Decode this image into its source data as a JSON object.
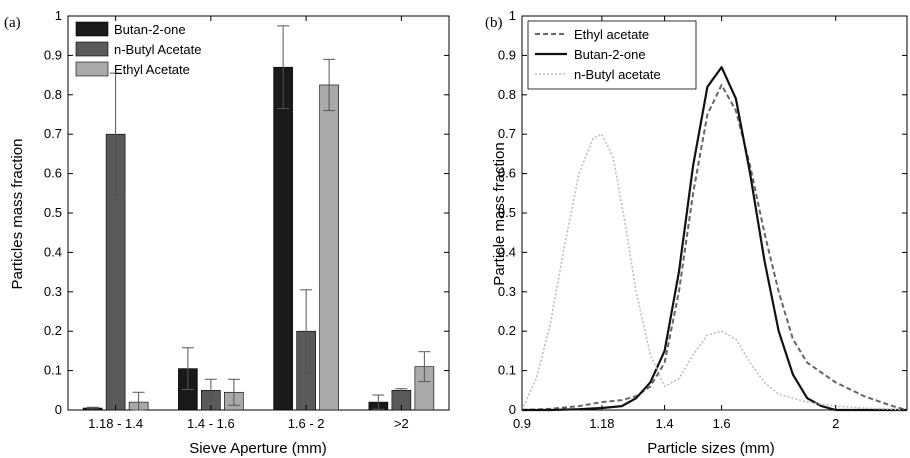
{
  "chart_data": [
    {
      "panel_label": "(a)",
      "type": "bar",
      "xlabel": "Sieve Aperture (mm)",
      "ylabel": "Particles mass fraction",
      "ylim": [
        0,
        1
      ],
      "yticks": [
        0,
        0.1,
        0.2,
        0.3,
        0.4,
        0.5,
        0.6,
        0.7,
        0.8,
        0.9,
        1
      ],
      "categories": [
        "1.18 - 1.4",
        "1.4 - 1.6",
        "1.6 - 2",
        ">2"
      ],
      "legend_position": "top-left",
      "series": [
        {
          "name": "Butan-2-one",
          "color": "#1a1a1a",
          "values": [
            0.005,
            0.105,
            0.87,
            0.02
          ],
          "errors": [
            0.002,
            0.053,
            0.105,
            0.018
          ]
        },
        {
          "name": "n-Butyl Acetate",
          "color": "#5a5a5a",
          "values": [
            0.7,
            0.05,
            0.2,
            0.05
          ],
          "errors": [
            0.155,
            0.028,
            0.105,
            0.004
          ]
        },
        {
          "name": "Ethyl Acetate",
          "color": "#a9a9a9",
          "values": [
            0.02,
            0.045,
            0.825,
            0.11
          ],
          "errors": [
            0.025,
            0.033,
            0.065,
            0.038
          ]
        }
      ]
    },
    {
      "panel_label": "(b)",
      "type": "line",
      "xlabel": "Particle sizes (mm)",
      "ylabel": "Particle mass fraction",
      "xlim": [
        0.9,
        2.25
      ],
      "ylim": [
        0,
        1
      ],
      "xticks": [
        0.9,
        1.18,
        1.4,
        1.6,
        2
      ],
      "yticks": [
        0,
        0.1,
        0.2,
        0.3,
        0.4,
        0.5,
        0.6,
        0.7,
        0.8,
        0.9,
        1
      ],
      "legend_position": "top-left",
      "series": [
        {
          "name": "Ethyl acetate",
          "color": "#666666",
          "style": "dashed",
          "x": [
            0.9,
            1.0,
            1.1,
            1.18,
            1.25,
            1.3,
            1.35,
            1.4,
            1.45,
            1.5,
            1.55,
            1.6,
            1.65,
            1.7,
            1.75,
            1.8,
            1.85,
            1.9,
            2.0,
            2.1,
            2.2,
            2.25
          ],
          "y": [
            0.0,
            0.003,
            0.01,
            0.02,
            0.025,
            0.035,
            0.06,
            0.12,
            0.3,
            0.55,
            0.75,
            0.825,
            0.76,
            0.62,
            0.45,
            0.3,
            0.18,
            0.12,
            0.07,
            0.035,
            0.01,
            0.0
          ]
        },
        {
          "name": "Butan-2-one",
          "color": "#111111",
          "style": "solid",
          "x": [
            0.9,
            1.0,
            1.1,
            1.18,
            1.25,
            1.3,
            1.35,
            1.4,
            1.45,
            1.5,
            1.55,
            1.6,
            1.65,
            1.7,
            1.75,
            1.8,
            1.85,
            1.9,
            1.95,
            2.0,
            2.1,
            2.2,
            2.25
          ],
          "y": [
            0.0,
            0.0,
            0.002,
            0.005,
            0.01,
            0.03,
            0.07,
            0.15,
            0.35,
            0.62,
            0.82,
            0.87,
            0.79,
            0.6,
            0.38,
            0.2,
            0.09,
            0.03,
            0.01,
            0.0,
            0.0,
            0.0,
            0.0
          ]
        },
        {
          "name": "n-Butyl acetate",
          "color": "#bdbdbd",
          "style": "dotted",
          "x": [
            0.9,
            0.95,
            1.0,
            1.05,
            1.1,
            1.15,
            1.18,
            1.22,
            1.26,
            1.3,
            1.35,
            1.4,
            1.45,
            1.5,
            1.55,
            1.6,
            1.65,
            1.7,
            1.75,
            1.8,
            1.9,
            2.0,
            2.1,
            2.2,
            2.25
          ],
          "y": [
            0.0,
            0.08,
            0.22,
            0.42,
            0.6,
            0.69,
            0.7,
            0.64,
            0.48,
            0.3,
            0.14,
            0.06,
            0.08,
            0.14,
            0.19,
            0.2,
            0.18,
            0.12,
            0.07,
            0.04,
            0.02,
            0.01,
            0.005,
            0.002,
            0.0
          ]
        }
      ]
    }
  ]
}
